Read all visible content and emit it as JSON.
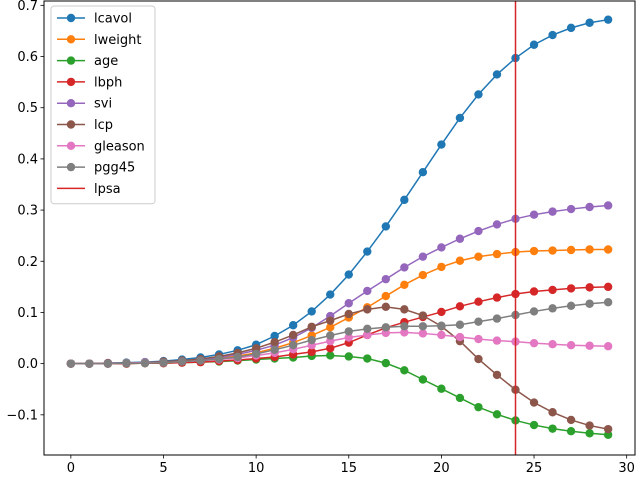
{
  "chart_data": {
    "type": "line",
    "title": "",
    "xlabel": "",
    "ylabel": "",
    "xlim": [
      -1.45,
      30.45
    ],
    "ylim": [
      -0.1785,
      0.7085
    ],
    "xticks": [
      0,
      5,
      10,
      15,
      20,
      25,
      30
    ],
    "yticks": [
      -0.1,
      0.0,
      0.1,
      0.2,
      0.3,
      0.4,
      0.5,
      0.6,
      0.7
    ],
    "ytick_labels": [
      "−0.1",
      "0.0",
      "0.1",
      "0.2",
      "0.3",
      "0.4",
      "0.5",
      "0.6",
      "0.7"
    ],
    "x": [
      0,
      1,
      2,
      3,
      4,
      5,
      6,
      7,
      8,
      9,
      10,
      11,
      12,
      13,
      14,
      15,
      16,
      17,
      18,
      19,
      20,
      21,
      22,
      23,
      24,
      25,
      26,
      27,
      28,
      29
    ],
    "grid": false,
    "legend_position": "top-left",
    "series": [
      {
        "name": "lcavol",
        "color": "#1f77b4",
        "marker": "circle",
        "values": [
          0.0,
          0.0,
          0.001,
          0.002,
          0.003,
          0.005,
          0.008,
          0.012,
          0.018,
          0.026,
          0.037,
          0.054,
          0.075,
          0.102,
          0.135,
          0.174,
          0.219,
          0.268,
          0.32,
          0.374,
          0.428,
          0.48,
          0.526,
          0.565,
          0.597,
          0.623,
          0.642,
          0.656,
          0.666,
          0.672
        ]
      },
      {
        "name": "lweight",
        "color": "#ff7f0e",
        "marker": "circle",
        "values": [
          0.0,
          0.0,
          0.0,
          0.001,
          0.002,
          0.003,
          0.005,
          0.007,
          0.01,
          0.015,
          0.021,
          0.03,
          0.041,
          0.055,
          0.071,
          0.09,
          0.11,
          0.132,
          0.154,
          0.173,
          0.189,
          0.201,
          0.209,
          0.214,
          0.218,
          0.22,
          0.221,
          0.222,
          0.223,
          0.223
        ]
      },
      {
        "name": "age",
        "color": "#2ca02c",
        "marker": "circle",
        "values": [
          0.0,
          0.0,
          0.0,
          0.0,
          0.001,
          0.001,
          0.002,
          0.003,
          0.004,
          0.006,
          0.008,
          0.01,
          0.012,
          0.015,
          0.016,
          0.014,
          0.01,
          0.001,
          -0.013,
          -0.031,
          -0.049,
          -0.067,
          -0.085,
          -0.099,
          -0.111,
          -0.12,
          -0.127,
          -0.132,
          -0.136,
          -0.139
        ]
      },
      {
        "name": "lbph",
        "color": "#d62728",
        "marker": "circle",
        "values": [
          0.0,
          0.0,
          0.0,
          0.0,
          0.001,
          0.001,
          0.002,
          0.003,
          0.005,
          0.007,
          0.01,
          0.013,
          0.018,
          0.023,
          0.03,
          0.041,
          0.056,
          0.07,
          0.081,
          0.091,
          0.101,
          0.112,
          0.121,
          0.129,
          0.136,
          0.141,
          0.144,
          0.147,
          0.149,
          0.15
        ]
      },
      {
        "name": "svi",
        "color": "#9467bd",
        "marker": "circle",
        "values": [
          0.0,
          0.0,
          0.001,
          0.001,
          0.002,
          0.003,
          0.005,
          0.008,
          0.012,
          0.018,
          0.026,
          0.036,
          0.051,
          0.07,
          0.093,
          0.118,
          0.142,
          0.165,
          0.188,
          0.209,
          0.227,
          0.244,
          0.259,
          0.272,
          0.283,
          0.291,
          0.297,
          0.302,
          0.306,
          0.309
        ]
      },
      {
        "name": "lcp",
        "color": "#8c564b",
        "marker": "circle",
        "values": [
          0.0,
          0.0,
          0.001,
          0.001,
          0.002,
          0.004,
          0.006,
          0.009,
          0.014,
          0.021,
          0.03,
          0.042,
          0.056,
          0.072,
          0.084,
          0.097,
          0.106,
          0.111,
          0.106,
          0.094,
          0.073,
          0.044,
          0.009,
          -0.022,
          -0.051,
          -0.076,
          -0.095,
          -0.11,
          -0.121,
          -0.128
        ]
      },
      {
        "name": "gleason",
        "color": "#e377c2",
        "marker": "circle",
        "values": [
          0.0,
          0.0,
          0.0,
          0.001,
          0.002,
          0.002,
          0.004,
          0.006,
          0.008,
          0.011,
          0.016,
          0.021,
          0.028,
          0.036,
          0.044,
          0.051,
          0.056,
          0.06,
          0.061,
          0.059,
          0.056,
          0.052,
          0.048,
          0.045,
          0.043,
          0.04,
          0.038,
          0.036,
          0.035,
          0.034
        ]
      },
      {
        "name": "pgg45",
        "color": "#7f7f7f",
        "marker": "circle",
        "values": [
          0.0,
          0.0,
          0.0,
          0.001,
          0.001,
          0.002,
          0.004,
          0.006,
          0.009,
          0.013,
          0.019,
          0.027,
          0.036,
          0.046,
          0.055,
          0.063,
          0.068,
          0.071,
          0.073,
          0.073,
          0.074,
          0.076,
          0.082,
          0.088,
          0.095,
          0.102,
          0.108,
          0.113,
          0.117,
          0.12
        ]
      }
    ],
    "vline": {
      "name": "lpsa",
      "x": 24,
      "color": "#d62728"
    }
  }
}
